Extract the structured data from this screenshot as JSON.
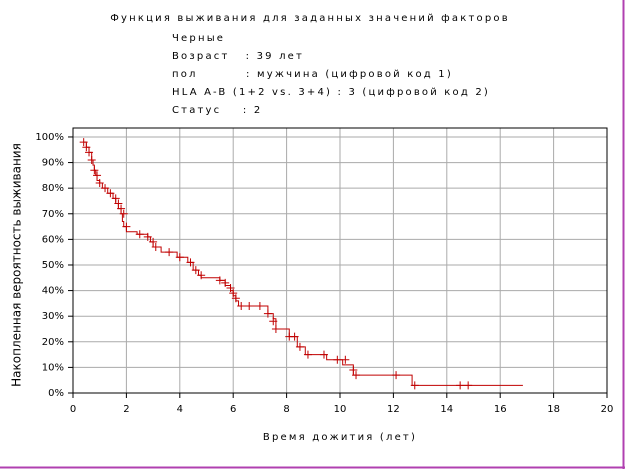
{
  "chart_data": {
    "type": "step",
    "title": "Функция выживания для заданных значений факторов",
    "info_lines": [
      "Черные",
      "Возраст   : 39 лет",
      "пол         : мужчина (цифровой код 1)",
      "HLA A-B (1+2 vs. 3+4) : 3 (цифровой код 2)",
      "Статус    : 2"
    ],
    "x_label": "Время дожития (лет)",
    "y_label": "Накопленная вероятность выживания",
    "xlim": [
      0,
      20
    ],
    "ylim": [
      0,
      103.5
    ],
    "xticks": [
      0,
      2,
      4,
      6,
      8,
      10,
      12,
      14,
      16,
      18,
      20
    ],
    "yticks": [
      {
        "value": 0,
        "label": "0%"
      },
      {
        "value": 10,
        "label": "10%"
      },
      {
        "value": 20,
        "label": "20%"
      },
      {
        "value": 30,
        "label": "30%"
      },
      {
        "value": 40,
        "label": "40%"
      },
      {
        "value": 50,
        "label": "50%"
      },
      {
        "value": 60,
        "label": "60%"
      },
      {
        "value": 70,
        "label": "70%"
      },
      {
        "value": 80,
        "label": "80%"
      },
      {
        "value": 90,
        "label": "90%"
      },
      {
        "value": 100,
        "label": "100%"
      }
    ],
    "grid": true,
    "series": [
      {
        "color": "#c00000",
        "x": [
          0.4,
          0.5,
          0.6,
          0.7,
          0.75,
          0.8,
          0.85,
          0.9,
          1.0,
          1.1,
          1.3,
          1.5,
          1.6,
          1.7,
          1.8,
          1.85,
          1.9,
          2.0,
          2.4,
          2.8,
          2.9,
          3.0,
          3.3,
          3.9,
          4.3,
          4.5,
          4.7,
          4.8,
          5.5,
          5.7,
          5.9,
          6.0,
          6.1,
          6.2,
          7.3,
          7.5,
          7.6,
          8.1,
          8.4,
          8.7,
          9.5,
          10.1,
          10.5,
          12.7,
          16.85
        ],
        "values": [
          98,
          96,
          94,
          91,
          89,
          87,
          85,
          83,
          82,
          80,
          78,
          76,
          74,
          72,
          70,
          67,
          65,
          63,
          62,
          61,
          59,
          57,
          55,
          53,
          51,
          48,
          46,
          45,
          44,
          42,
          40,
          38,
          36,
          34,
          31,
          29,
          25,
          22,
          18,
          15,
          13,
          11,
          7,
          3,
          3
        ]
      }
    ],
    "censored": {
      "color": "#c00000",
      "x": [
        0.4,
        0.5,
        0.6,
        0.7,
        0.8,
        0.9,
        1.0,
        1.2,
        1.4,
        1.6,
        1.7,
        1.8,
        1.9,
        2.0,
        2.5,
        2.8,
        3.0,
        3.1,
        3.6,
        4.0,
        4.4,
        4.6,
        4.8,
        5.5,
        5.7,
        5.9,
        6.0,
        6.1,
        6.3,
        6.6,
        7.0,
        7.3,
        7.5,
        7.6,
        8.1,
        8.3,
        8.5,
        8.8,
        9.4,
        9.9,
        10.2,
        10.5,
        10.6,
        12.1,
        12.8,
        14.5,
        14.8
      ],
      "values": [
        98,
        96,
        94,
        91,
        87,
        85,
        82,
        80,
        78,
        76,
        74,
        72,
        70,
        65,
        62,
        61,
        59,
        57,
        55,
        53,
        51,
        48,
        46,
        44,
        43,
        41,
        39,
        37,
        34,
        34,
        34,
        31,
        28,
        25,
        22,
        22,
        18,
        15,
        15,
        13,
        13,
        9,
        7,
        7,
        3,
        3,
        3
      ]
    }
  }
}
